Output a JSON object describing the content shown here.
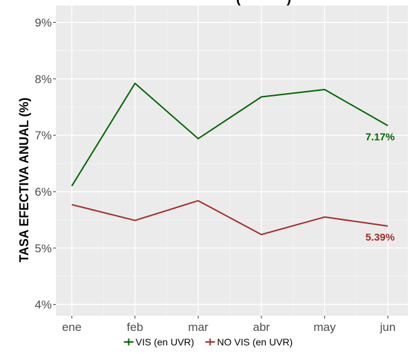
{
  "title_fragment": "(            )",
  "chart_data": {
    "type": "line",
    "categories": [
      "ene",
      "feb",
      "mar",
      "abr",
      "may",
      "jun"
    ],
    "ylabel": "TASA EFECTIVA ANUAL (%)",
    "ylim": [
      3.8,
      9.3
    ],
    "yticks": [
      4,
      5,
      6,
      7,
      8,
      9
    ],
    "ytick_labels": [
      "4%",
      "5%",
      "6%",
      "7%",
      "8%",
      "9%"
    ],
    "grid": true,
    "legend_position": "bottom",
    "series": [
      {
        "name": "VIS (en UVR)",
        "color": "#006400",
        "values": [
          6.1,
          7.92,
          6.94,
          7.68,
          7.81,
          7.17
        ],
        "end_label": "7.17%"
      },
      {
        "name": "NO VIS (en UVR)",
        "color": "#a52a2a",
        "values": [
          5.77,
          5.49,
          5.84,
          5.24,
          5.55,
          5.39
        ],
        "end_label": "5.39%"
      }
    ]
  }
}
